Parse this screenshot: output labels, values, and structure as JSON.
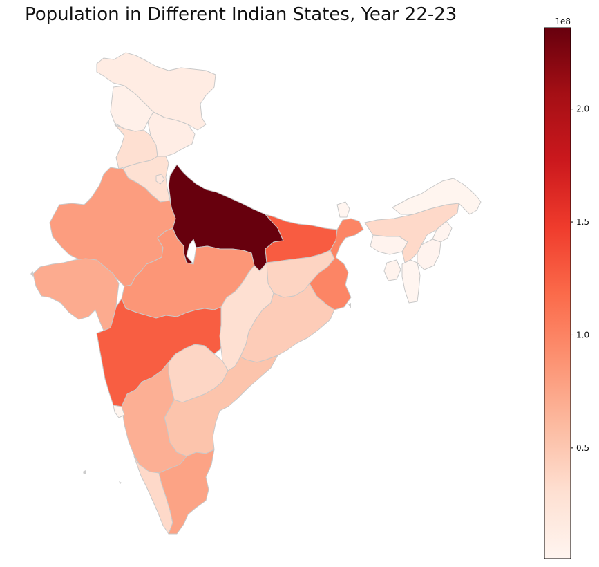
{
  "title": "Population in Different Indian States, Year 22-23",
  "colorbar": {
    "colormap": "Reds",
    "stops": [
      "#fff5f0",
      "#fee0d2",
      "#fcbba1",
      "#fc9272",
      "#fb6a4a",
      "#ef3b2c",
      "#cb181d",
      "#a50f15",
      "#67000d"
    ],
    "vmin": 1000000,
    "vmax": 236000000,
    "offset_label": "1e8",
    "ticks": [
      {
        "value": 50000000,
        "label": "0.5"
      },
      {
        "value": 100000000,
        "label": "1.0"
      },
      {
        "value": 150000000,
        "label": "1.5"
      },
      {
        "value": 200000000,
        "label": "2.0"
      }
    ]
  },
  "chart_data": {
    "type": "choropleth",
    "title": "Population in Different Indian States, Year 22-23",
    "value_unit_multiplier": "1e8",
    "states": [
      {
        "name": "Jammu & Kashmir / Ladakh",
        "value": 14000000
      },
      {
        "name": "Himachal Pradesh",
        "value": 7500000
      },
      {
        "name": "Punjab",
        "value": 30000000
      },
      {
        "name": "Uttarakhand",
        "value": 11500000
      },
      {
        "name": "Haryana",
        "value": 29000000
      },
      {
        "name": "Delhi",
        "value": 20000000
      },
      {
        "name": "Uttar Pradesh",
        "value": 236000000
      },
      {
        "name": "Rajasthan",
        "value": 81000000
      },
      {
        "name": "Gujarat",
        "value": 71000000
      },
      {
        "name": "Madhya Pradesh",
        "value": 86000000
      },
      {
        "name": "Bihar",
        "value": 127000000
      },
      {
        "name": "Jharkhand",
        "value": 40000000
      },
      {
        "name": "West Bengal",
        "value": 99000000
      },
      {
        "name": "Sikkim",
        "value": 700000
      },
      {
        "name": "Assam",
        "value": 36000000
      },
      {
        "name": "Arunachal Pradesh",
        "value": 1600000
      },
      {
        "name": "Nagaland",
        "value": 2200000
      },
      {
        "name": "Manipur",
        "value": 3200000
      },
      {
        "name": "Mizoram",
        "value": 1300000
      },
      {
        "name": "Tripura",
        "value": 4200000
      },
      {
        "name": "Meghalaya",
        "value": 3300000
      },
      {
        "name": "Chhattisgarh",
        "value": 30000000
      },
      {
        "name": "Odisha",
        "value": 46000000
      },
      {
        "name": "Maharashtra",
        "value": 126000000
      },
      {
        "name": "Telangana",
        "value": 38000000
      },
      {
        "name": "Andhra Pradesh",
        "value": 53000000
      },
      {
        "name": "Karnataka",
        "value": 68000000
      },
      {
        "name": "Goa",
        "value": 1600000
      },
      {
        "name": "Kerala",
        "value": 36000000
      },
      {
        "name": "Tamil Nadu",
        "value": 77000000
      }
    ]
  }
}
